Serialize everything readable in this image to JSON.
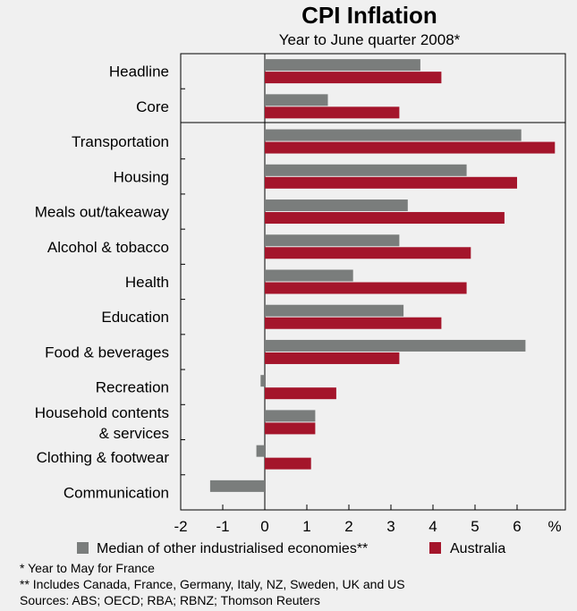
{
  "chart_data": {
    "type": "bar",
    "orientation": "horizontal",
    "title": "CPI Inflation",
    "subtitle": "Year to June quarter 2008*",
    "unit_label": "%",
    "xlim": [
      -2,
      7
    ],
    "xticks": [
      -2,
      -1,
      0,
      1,
      2,
      3,
      4,
      5,
      6
    ],
    "groups": [
      {
        "name": "top",
        "categories": [
          "Headline",
          "Core"
        ]
      },
      {
        "name": "components",
        "categories": [
          "Transportation",
          "Housing",
          "Meals out/takeaway",
          "Alcohol & tobacco",
          "Health",
          "Education",
          "Food & beverages",
          "Recreation",
          "Household contents & services",
          "Clothing & footwear",
          "Communication"
        ]
      }
    ],
    "categories": [
      {
        "label": [
          "Headline"
        ]
      },
      {
        "label": [
          "Core"
        ]
      },
      {
        "label": [
          "Transportation"
        ]
      },
      {
        "label": [
          "Housing"
        ]
      },
      {
        "label": [
          "Meals out/takeaway"
        ]
      },
      {
        "label": [
          "Alcohol & tobacco"
        ]
      },
      {
        "label": [
          "Health"
        ]
      },
      {
        "label": [
          "Education"
        ]
      },
      {
        "label": [
          "Food & beverages"
        ]
      },
      {
        "label": [
          "Recreation"
        ]
      },
      {
        "label": [
          "Household contents",
          "& services"
        ]
      },
      {
        "label": [
          "Clothing & footwear"
        ]
      },
      {
        "label": [
          "Communication"
        ]
      }
    ],
    "series": [
      {
        "name": "Median of other industrialised economies**",
        "color": "#7a7d7c",
        "values": [
          3.7,
          1.5,
          6.1,
          4.8,
          3.4,
          3.2,
          2.1,
          3.3,
          6.2,
          -0.1,
          1.2,
          -0.2,
          -1.3
        ]
      },
      {
        "name": "Australia",
        "color": "#a4152b",
        "values": [
          4.2,
          3.2,
          6.9,
          6.0,
          5.7,
          4.9,
          4.8,
          4.2,
          3.2,
          1.7,
          1.2,
          1.1,
          null
        ]
      }
    ]
  },
  "footnotes": [
    "*   Year to May for France",
    "**  Includes Canada, France, Germany, Italy, NZ, Sweden, UK and US",
    "Sources: ABS; OECD; RBA; RBNZ; Thomson Reuters"
  ]
}
